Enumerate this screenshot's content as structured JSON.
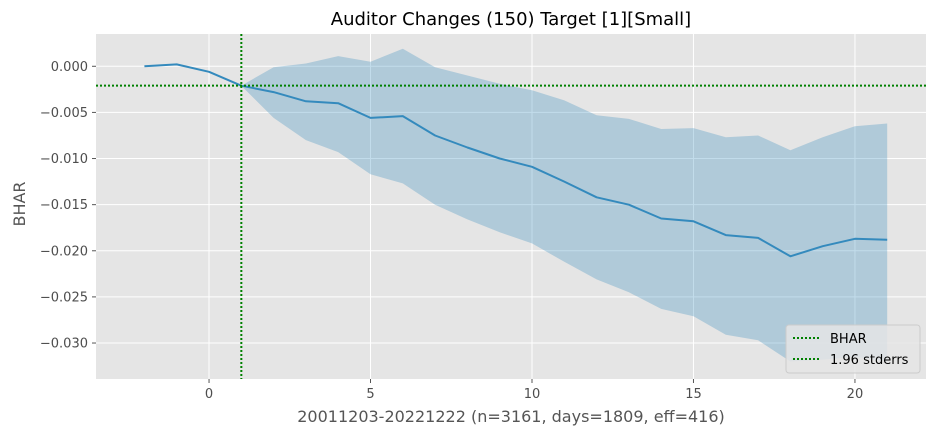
{
  "chart_data": {
    "type": "line",
    "title": "Auditor Changes (150) Target [1][Small]",
    "xlabel": "20011203-20221222 (n=3161, days=1809, eff=416)",
    "ylabel": "BHAR",
    "xlim": [
      -3.5,
      22.2
    ],
    "ylim": [
      -0.0339,
      0.0035
    ],
    "x_ticks": [
      0,
      5,
      10,
      15,
      20
    ],
    "y_ticks": [
      0.0,
      -0.005,
      -0.01,
      -0.015,
      -0.02,
      -0.025,
      -0.03
    ],
    "x_tick_labels": [
      "0",
      "5",
      "10",
      "15",
      "20"
    ],
    "y_tick_labels": [
      "0.000",
      "−0.005",
      "−0.010",
      "−0.015",
      "−0.020",
      "−0.025",
      "−0.030"
    ],
    "grid": true,
    "legend_position": "lower-right",
    "series": [
      {
        "name": "BHAR",
        "color": "#348abd",
        "x": [
          -2,
          -1,
          0,
          1,
          2,
          3,
          4,
          5,
          6,
          7,
          8,
          9,
          10,
          11,
          12,
          13,
          14,
          15,
          16,
          17,
          18,
          19,
          20,
          21
        ],
        "y": [
          0.0,
          0.0002,
          -0.0006,
          -0.0021,
          -0.0028,
          -0.0038,
          -0.004,
          -0.0056,
          -0.0054,
          -0.0075,
          -0.0088,
          -0.01,
          -0.0109,
          -0.0125,
          -0.0142,
          -0.015,
          -0.0165,
          -0.0168,
          -0.0183,
          -0.0186,
          -0.0206,
          -0.0195,
          -0.0187,
          -0.0188
        ]
      }
    ],
    "band": {
      "color": "#348abd",
      "x": [
        1,
        2,
        3,
        4,
        5,
        6,
        7,
        8,
        9,
        10,
        11,
        12,
        13,
        14,
        15,
        16,
        17,
        18,
        19,
        20,
        21
      ],
      "upper": [
        -0.0021,
        -0.0001,
        0.0003,
        0.0011,
        0.0005,
        0.0019,
        -0.0001,
        -0.001,
        -0.0019,
        -0.0026,
        -0.0037,
        -0.0053,
        -0.0057,
        -0.0068,
        -0.0067,
        -0.0077,
        -0.0075,
        -0.0091,
        -0.0077,
        -0.0065,
        -0.0062
      ],
      "lower": [
        -0.0021,
        -0.0056,
        -0.008,
        -0.0093,
        -0.0117,
        -0.0127,
        -0.015,
        -0.0166,
        -0.018,
        -0.0192,
        -0.0212,
        -0.0231,
        -0.0245,
        -0.0263,
        -0.0271,
        -0.0291,
        -0.0297,
        -0.032,
        -0.0318,
        -0.0315,
        -0.032
      ]
    },
    "reference_lines": {
      "vertical_x": 1,
      "horizontal_y": -0.0021,
      "color": "#008000"
    },
    "legend": [
      {
        "label": "BHAR",
        "color": "#008000",
        "style": "dotted"
      },
      {
        "label": "1.96 stderrs",
        "color": "#008000",
        "style": "dotted"
      }
    ]
  }
}
